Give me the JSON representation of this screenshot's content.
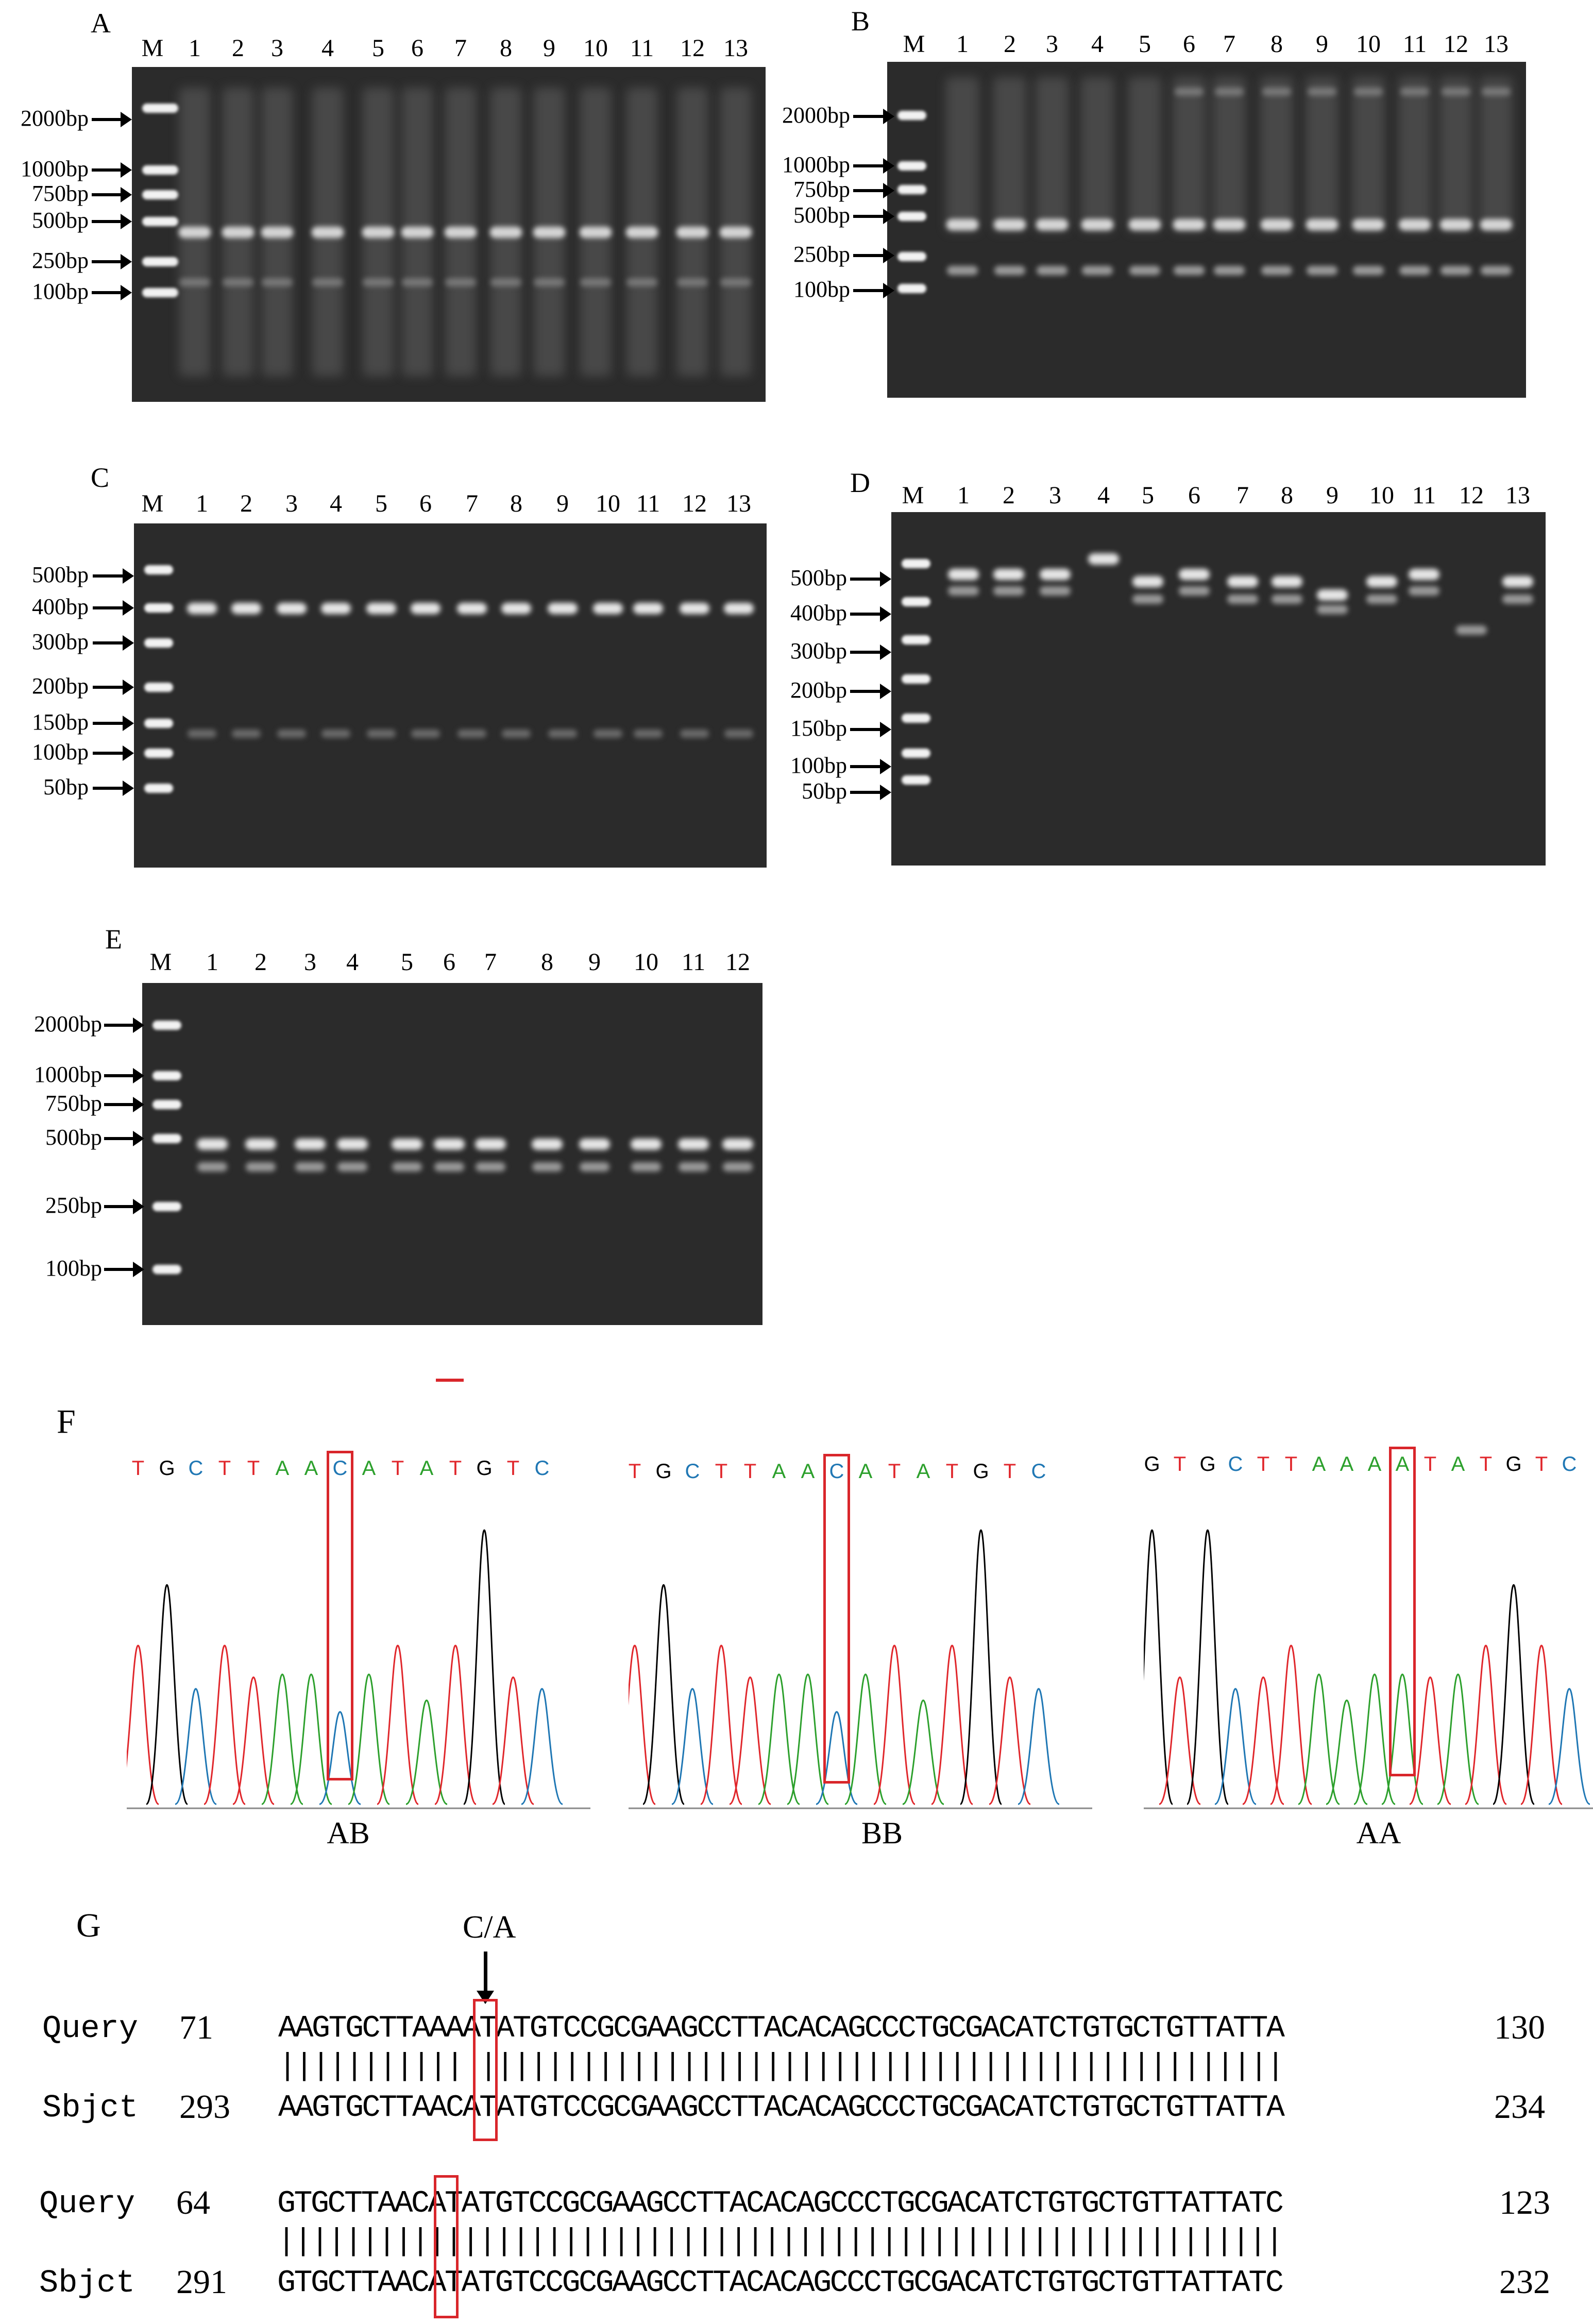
{
  "figure": {
    "panel_A": {
      "letter": "A",
      "lanes": [
        "M",
        "1",
        "2",
        "3",
        "4",
        "5",
        "6",
        "7",
        "8",
        "9",
        "10",
        "11",
        "12",
        "13"
      ],
      "marker_sizes": [
        "2000bp",
        "1000bp",
        "750bp",
        "500bp",
        "250bp",
        "100bp"
      ]
    },
    "panel_B": {
      "letter": "B",
      "lanes": [
        "M",
        "1",
        "2",
        "3",
        "4",
        "5",
        "6",
        "7",
        "8",
        "9",
        "10",
        "11",
        "12",
        "13"
      ],
      "marker_sizes": [
        "2000bp",
        "1000bp",
        "750bp",
        "500bp",
        "250bp",
        "100bp"
      ]
    },
    "panel_C": {
      "letter": "C",
      "lanes": [
        "M",
        "1",
        "2",
        "3",
        "4",
        "5",
        "6",
        "7",
        "8",
        "9",
        "10",
        "11",
        "12",
        "13"
      ],
      "marker_sizes": [
        "500bp",
        "400bp",
        "300bp",
        "200bp",
        "150bp",
        "100bp",
        "50bp"
      ]
    },
    "panel_D": {
      "letter": "D",
      "lanes": [
        "M",
        "1",
        "2",
        "3",
        "4",
        "5",
        "6",
        "7",
        "8",
        "9",
        "10",
        "11",
        "12",
        "13"
      ],
      "marker_sizes": [
        "500bp",
        "400bp",
        "300bp",
        "200bp",
        "150bp",
        "100bp",
        "50bp"
      ]
    },
    "panel_E": {
      "letter": "E",
      "lanes": [
        "M",
        "1",
        "2",
        "3",
        "4",
        "5",
        "6",
        "7",
        "8",
        "9",
        "10",
        "11",
        "12"
      ],
      "marker_sizes": [
        "2000bp",
        "1000bp",
        "750bp",
        "500bp",
        "250bp",
        "100bp"
      ]
    },
    "panel_F": {
      "letter": "F",
      "traces": [
        {
          "genotype": "AB",
          "sequence": [
            "T",
            "G",
            "C",
            "T",
            "T",
            "A",
            "A",
            "C",
            "A",
            "T",
            "A",
            "T",
            "G",
            "T",
            "C"
          ]
        },
        {
          "genotype": "BB",
          "sequence": [
            "T",
            "G",
            "C",
            "T",
            "T",
            "A",
            "A",
            "C",
            "A",
            "T",
            "A",
            "T",
            "G",
            "T",
            "C"
          ]
        },
        {
          "genotype": "AA",
          "sequence": [
            "G",
            "T",
            "G",
            "C",
            "T",
            "T",
            "A",
            "A",
            "A",
            "A",
            "T",
            "A",
            "T",
            "G",
            "T",
            "C"
          ]
        }
      ],
      "base_colors": {
        "A": "#2ca02c",
        "C": "#1f77b4",
        "G": "#000000",
        "T": "#e0262b"
      }
    },
    "panel_G": {
      "letter": "G",
      "snp_label": "C/A",
      "alignments": [
        {
          "query_label": "Query",
          "query_start": "71",
          "query_seq": "AAGTGCTTAAAATATGTCCGCGAAGCCTTACACAGCCCTGCGACATCTGTGCTGTTATTA",
          "query_end": "130",
          "match_line": "||||||||||| ||||||||||||||||||||||||||||||||||||||||||||||||",
          "sbjct_label": "Sbjct",
          "sbjct_start": "293",
          "sbjct_seq": "AAGTGCTTAACATATGTCCGCGAAGCCTTACACAGCCCTGCGACATCTGTGCTGTTATTA",
          "sbjct_end": "234"
        },
        {
          "query_label": "Query",
          "query_start": "64",
          "query_seq": "GTGCTTAACATATGTCCGCGAAGCCTTACACAGCCCTGCGACATCTGTGCTGTTATTATC",
          "query_end": "123",
          "match_line": "||||||||||||||||||||||||||||||||||||||||||||||||||||||||||||",
          "sbjct_label": "Sbjct",
          "sbjct_start": "291",
          "sbjct_seq": "GTGCTTAACATATGTCCGCGAAGCCTTACACAGCCCTGCGACATCTGTGCTGTTATTATC",
          "sbjct_end": "232"
        }
      ]
    }
  }
}
